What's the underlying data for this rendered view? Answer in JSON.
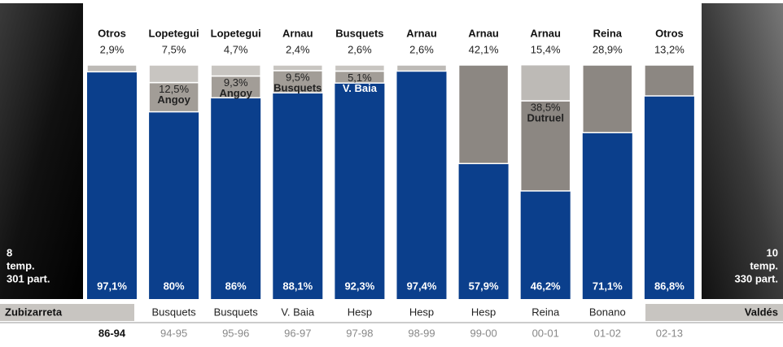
{
  "chart_data": {
    "type": "stacked_bar",
    "left_photo": {
      "keeper": "Zubizarreta",
      "line1": "8",
      "line2": "temp.",
      "line3": "301 part."
    },
    "right_photo": {
      "keeper": "Valdés",
      "line1": "10",
      "line2": "temp.",
      "line3": "330 part."
    },
    "ylim": [
      0,
      100
    ],
    "columns": [
      {
        "category": "86-94",
        "keeper": null,
        "value": 97.1,
        "value_label": "97,1%",
        "color": "#0b3f8c",
        "segments": [
          {
            "name": "Otros",
            "value": 2.9,
            "value_label": "2,9%",
            "color": "#bdbab6"
          }
        ]
      },
      {
        "category": "94-95",
        "keeper": "Busquets",
        "value": 80,
        "value_label": "80%",
        "color": "#0b3f8c",
        "segments": [
          {
            "name": "Angoy",
            "value": 12.5,
            "value_label": "12,5%",
            "color": "#a29d97"
          },
          {
            "name": "Lopetegui",
            "value": 7.5,
            "value_label": "7,5%",
            "color": "#c8c5c1"
          }
        ]
      },
      {
        "category": "95-96",
        "keeper": "Busquets",
        "value": 86,
        "value_label": "86%",
        "color": "#0b3f8c",
        "segments": [
          {
            "name": "Angoy",
            "value": 9.3,
            "value_label": "9,3%",
            "color": "#a29d97"
          },
          {
            "name": "Lopetegui",
            "value": 4.7,
            "value_label": "4,7%",
            "color": "#c8c5c1"
          }
        ]
      },
      {
        "category": "96-97",
        "keeper": "V. Baia",
        "value": 88.1,
        "value_label": "88,1%",
        "color": "#0b3f8c",
        "segments": [
          {
            "name": "Busquets",
            "value": 9.5,
            "value_label": "9,5%",
            "color": "#a29d97"
          },
          {
            "name": "Arnau",
            "value": 2.4,
            "value_label": "2,4%",
            "color": "#c8c5c1"
          }
        ]
      },
      {
        "category": "97-98",
        "keeper": "Hesp",
        "value": 92.3,
        "value_label": "92,3%",
        "color": "#0b3f8c",
        "segments": [
          {
            "name": "V. Baia",
            "value": 5.1,
            "value_label": "5,1%",
            "color": "#a29d97"
          },
          {
            "name": "Busquets",
            "value": 2.6,
            "value_label": "2,6%",
            "color": "#c8c5c1"
          }
        ]
      },
      {
        "category": "98-99",
        "keeper": "Hesp",
        "value": 97.4,
        "value_label": "97,4%",
        "color": "#0b3f8c",
        "segments": [
          {
            "name": "Arnau",
            "value": 2.6,
            "value_label": "2,6%",
            "color": "#bdbab6"
          }
        ]
      },
      {
        "category": "99-00",
        "keeper": "Hesp",
        "value": 57.9,
        "value_label": "57,9%",
        "color": "#0b3f8c",
        "segments": [
          {
            "name": "Arnau",
            "value": 42.1,
            "value_label": "42,1%",
            "color": "#8c8782"
          }
        ]
      },
      {
        "category": "00-01",
        "keeper": "Reina",
        "value": 46.2,
        "value_label": "46,2%",
        "color": "#0b3f8c",
        "segments": [
          {
            "name": "Dutruel",
            "value": 38.5,
            "value_label": "38,5%",
            "color": "#8c8782"
          },
          {
            "name": "Arnau",
            "value": 15.4,
            "value_label": "15,4%",
            "color": "#bdbab6"
          }
        ]
      },
      {
        "category": "01-02",
        "keeper": "Bonano",
        "value": 71.1,
        "value_label": "71,1%",
        "color": "#0b3f8c",
        "segments": [
          {
            "name": "Reina",
            "value": 28.9,
            "value_label": "28,9%",
            "color": "#8c8782"
          }
        ]
      },
      {
        "category": "02-13",
        "keeper": null,
        "value": 86.8,
        "value_label": "86,8%",
        "color": "#0b3f8c",
        "segments": [
          {
            "name": "Otros",
            "value": 13.2,
            "value_label": "13,2%",
            "color": "#8c8782"
          }
        ]
      }
    ]
  }
}
